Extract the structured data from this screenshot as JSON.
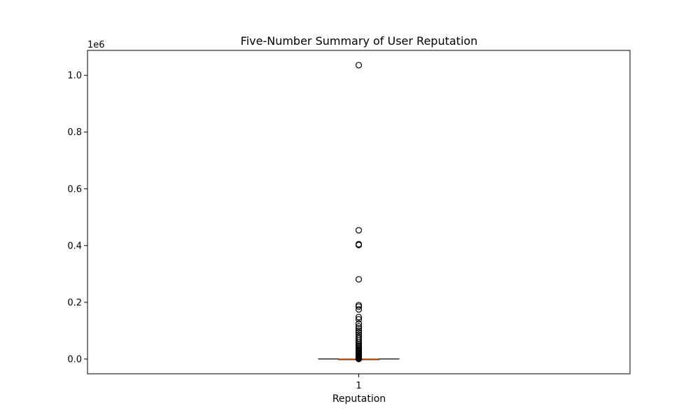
{
  "chart_data": {
    "type": "box",
    "title": "Five-Number Summary of User Reputation",
    "xlabel": "Reputation",
    "ylabel": "",
    "categories": [
      "1"
    ],
    "y_offset_label": "1e6",
    "y_tick_values": [
      0,
      200000,
      400000,
      600000,
      800000,
      1000000
    ],
    "y_tick_labels": [
      "0.0",
      "0.2",
      "0.4",
      "0.6",
      "0.8",
      "1.0"
    ],
    "ylim": [
      -52000,
      1088000
    ],
    "xlim": [
      0.5,
      1.5
    ],
    "grid": false,
    "box": {
      "category": "1",
      "min": 1,
      "q1": 1,
      "median": 10,
      "q3": 150,
      "max": 350,
      "whisker_low": 1,
      "whisker_high": 350,
      "outliers": [
        1036000,
        454000,
        405000,
        402000,
        281000,
        190000,
        185000,
        175000,
        148000,
        140000,
        125000,
        115000,
        108000,
        100000,
        93000,
        85000,
        78000,
        72000,
        65000,
        58000,
        52000,
        47000,
        43000,
        39000,
        35000,
        31000,
        27000,
        23000,
        19000,
        16000,
        13000,
        10000,
        8000,
        6000,
        4000,
        3000,
        2000,
        1200,
        800,
        500
      ]
    },
    "colors": {
      "box_edge": "#000000",
      "median": "#e07b39",
      "outlier_edge": "#000000",
      "axes": "#000000"
    }
  }
}
